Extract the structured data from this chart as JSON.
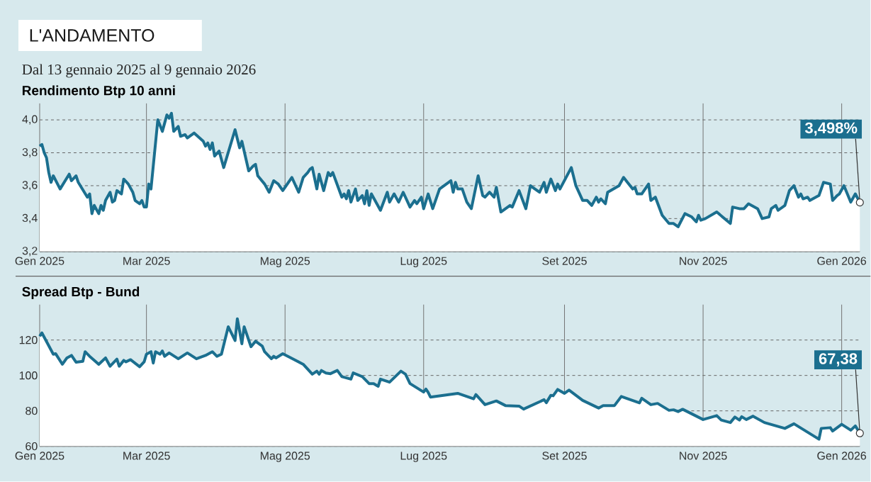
{
  "chart_data": [
    {
      "type": "area",
      "title": "L'ANDAMENTO",
      "subtitle": "Dal 13 gennaio 2025 al 9 gennaio 2026",
      "ylabel": "Rendimento Btp 10 anni",
      "color": "#1b6f8f",
      "grid": true,
      "xlim": [
        "2025-01-13",
        "2026-01-09"
      ],
      "ylim": [
        3.2,
        4.1
      ],
      "xticks": [
        {
          "value": "2025-01-13",
          "label": "Gen 2025"
        },
        {
          "value": "2025-03-01",
          "label": "Mar 2025"
        },
        {
          "value": "2025-05-01",
          "label": "Mag 2025"
        },
        {
          "value": "2025-07-01",
          "label": "Lug 2025"
        },
        {
          "value": "2025-09-01",
          "label": "Set 2025"
        },
        {
          "value": "2025-11-01",
          "label": "Nov 2025"
        },
        {
          "value": "2026-01-01",
          "label": "Gen 2026"
        }
      ],
      "yticks": [
        {
          "value": 3.2,
          "label": "3,2"
        },
        {
          "value": 3.4,
          "label": "3,4"
        },
        {
          "value": 3.6,
          "label": "3,6"
        },
        {
          "value": 3.8,
          "label": "3,8"
        },
        {
          "value": 4.0,
          "label": "4,0"
        }
      ],
      "x": [
        "2025-01-13",
        "2025-01-14",
        "2025-01-15",
        "2025-01-16",
        "2025-01-17",
        "2025-01-18",
        "2025-01-19",
        "2025-01-22",
        "2025-01-26",
        "2025-01-27",
        "2025-01-29",
        "2025-01-30",
        "2025-02-03",
        "2025-02-04",
        "2025-02-05",
        "2025-02-06",
        "2025-02-08",
        "2025-02-09",
        "2025-02-10",
        "2025-02-11",
        "2025-02-13",
        "2025-02-14",
        "2025-02-15",
        "2025-02-16",
        "2025-02-18",
        "2025-02-19",
        "2025-02-21",
        "2025-02-23",
        "2025-02-24",
        "2025-02-26",
        "2025-02-27",
        "2025-02-28",
        "2025-03-01",
        "2025-03-02",
        "2025-03-03",
        "2025-03-06",
        "2025-03-08",
        "2025-03-10",
        "2025-03-11",
        "2025-03-12",
        "2025-03-13",
        "2025-03-15",
        "2025-03-16",
        "2025-03-18",
        "2025-03-19",
        "2025-03-22",
        "2025-03-26",
        "2025-03-27",
        "2025-03-28",
        "2025-03-29",
        "2025-03-30",
        "2025-03-31",
        "2025-04-02",
        "2025-04-04",
        "2025-04-09",
        "2025-04-11",
        "2025-04-12",
        "2025-04-15",
        "2025-04-17",
        "2025-04-18",
        "2025-04-19",
        "2025-04-22",
        "2025-04-24",
        "2025-04-26",
        "2025-04-28",
        "2025-04-30",
        "2025-05-04",
        "2025-05-07",
        "2025-05-09",
        "2025-05-11",
        "2025-05-12",
        "2025-05-13",
        "2025-05-15",
        "2025-05-16",
        "2025-05-18",
        "2025-05-20",
        "2025-05-21",
        "2025-05-22",
        "2025-05-26",
        "2025-05-27",
        "2025-05-28",
        "2025-05-29",
        "2025-05-30",
        "2025-06-01",
        "2025-06-02",
        "2025-06-04",
        "2025-06-05",
        "2025-06-06",
        "2025-06-07",
        "2025-06-08",
        "2025-06-12",
        "2025-06-15",
        "2025-06-16",
        "2025-06-18",
        "2025-06-20",
        "2025-06-22",
        "2025-06-25",
        "2025-06-27",
        "2025-06-28",
        "2025-06-30",
        "2025-07-01",
        "2025-07-03",
        "2025-07-05",
        "2025-07-08",
        "2025-07-11",
        "2025-07-13",
        "2025-07-14",
        "2025-07-15",
        "2025-07-16",
        "2025-07-18",
        "2025-07-20",
        "2025-07-22",
        "2025-07-25",
        "2025-07-27",
        "2025-07-28",
        "2025-07-30",
        "2025-08-01",
        "2025-08-02",
        "2025-08-04",
        "2025-08-08",
        "2025-08-09",
        "2025-08-12",
        "2025-08-15",
        "2025-08-17",
        "2025-08-18",
        "2025-08-21",
        "2025-08-23",
        "2025-08-24",
        "2025-08-26",
        "2025-08-28",
        "2025-08-29",
        "2025-08-30",
        "2025-09-04",
        "2025-09-06",
        "2025-09-09",
        "2025-09-11",
        "2025-09-13",
        "2025-09-15",
        "2025-09-16",
        "2025-09-17",
        "2025-09-19",
        "2025-09-20",
        "2025-09-25",
        "2025-09-27",
        "2025-10-01",
        "2025-10-02",
        "2025-10-03",
        "2025-10-05",
        "2025-10-08",
        "2025-10-09",
        "2025-10-11",
        "2025-10-14",
        "2025-10-17",
        "2025-10-19",
        "2025-10-21",
        "2025-10-24",
        "2025-10-27",
        "2025-10-29",
        "2025-10-30",
        "2025-10-31",
        "2025-11-02",
        "2025-11-07",
        "2025-11-13",
        "2025-11-14",
        "2025-11-17",
        "2025-11-19",
        "2025-11-21",
        "2025-11-25",
        "2025-11-27",
        "2025-11-30",
        "2025-12-01",
        "2025-12-03",
        "2025-12-04",
        "2025-12-07",
        "2025-12-09",
        "2025-12-11",
        "2025-12-13",
        "2025-12-14",
        "2025-12-15",
        "2025-12-17",
        "2025-12-18",
        "2025-12-22",
        "2025-12-24",
        "2025-12-27",
        "2025-12-28",
        "2025-12-30",
        "2025-12-31",
        "2026-01-02",
        "2026-01-05",
        "2026-01-07",
        "2026-01-09"
      ],
      "values": [
        3.84,
        3.85,
        3.8,
        3.77,
        3.68,
        3.62,
        3.66,
        3.58,
        3.67,
        3.63,
        3.66,
        3.62,
        3.53,
        3.55,
        3.43,
        3.48,
        3.43,
        3.48,
        3.45,
        3.51,
        3.56,
        3.5,
        3.51,
        3.57,
        3.55,
        3.64,
        3.61,
        3.56,
        3.51,
        3.49,
        3.51,
        3.47,
        3.47,
        3.61,
        3.58,
        4.0,
        3.93,
        4.03,
        4.01,
        4.04,
        3.93,
        3.96,
        3.9,
        3.91,
        3.89,
        3.92,
        3.87,
        3.84,
        3.86,
        3.82,
        3.86,
        3.78,
        3.81,
        3.71,
        3.94,
        3.83,
        3.87,
        3.69,
        3.72,
        3.73,
        3.66,
        3.61,
        3.56,
        3.63,
        3.61,
        3.57,
        3.65,
        3.56,
        3.65,
        3.68,
        3.7,
        3.71,
        3.58,
        3.67,
        3.57,
        3.68,
        3.66,
        3.68,
        3.53,
        3.55,
        3.52,
        3.57,
        3.5,
        3.58,
        3.51,
        3.54,
        3.49,
        3.57,
        3.48,
        3.55,
        3.45,
        3.56,
        3.5,
        3.55,
        3.5,
        3.56,
        3.47,
        3.51,
        3.49,
        3.53,
        3.46,
        3.55,
        3.46,
        3.58,
        3.61,
        3.63,
        3.56,
        3.62,
        3.58,
        3.58,
        3.5,
        3.46,
        3.66,
        3.54,
        3.53,
        3.56,
        3.53,
        3.59,
        3.44,
        3.48,
        3.47,
        3.57,
        3.46,
        3.6,
        3.59,
        3.56,
        3.62,
        3.56,
        3.64,
        3.57,
        3.61,
        3.58,
        3.71,
        3.6,
        3.51,
        3.51,
        3.48,
        3.53,
        3.5,
        3.52,
        3.49,
        3.56,
        3.6,
        3.65,
        3.58,
        3.59,
        3.55,
        3.55,
        3.61,
        3.51,
        3.53,
        3.42,
        3.37,
        3.37,
        3.35,
        3.43,
        3.41,
        3.38,
        3.42,
        3.39,
        3.4,
        3.44,
        3.37,
        3.47,
        3.46,
        3.46,
        3.49,
        3.46,
        3.4,
        3.41,
        3.46,
        3.48,
        3.45,
        3.48,
        3.57,
        3.6,
        3.53,
        3.55,
        3.52,
        3.53,
        3.51,
        3.54,
        3.62,
        3.61,
        3.51,
        3.54,
        3.55,
        3.6,
        3.5,
        3.55,
        3.498
      ],
      "annotations": [
        {
          "text": "3,498%",
          "x": "2026-01-09",
          "y": 3.498
        }
      ]
    },
    {
      "type": "area",
      "ylabel": "Spread Btp - Bund",
      "color": "#1b6f8f",
      "grid": true,
      "xlim": [
        "2025-01-13",
        "2026-01-09"
      ],
      "ylim": [
        60,
        140
      ],
      "xticks": [
        {
          "value": "2025-01-13",
          "label": "Gen 2025"
        },
        {
          "value": "2025-03-01",
          "label": "Mar 2025"
        },
        {
          "value": "2025-05-01",
          "label": "Mag 2025"
        },
        {
          "value": "2025-07-01",
          "label": "Lug 2025"
        },
        {
          "value": "2025-09-01",
          "label": "Set 2025"
        },
        {
          "value": "2025-11-01",
          "label": "Nov 2025"
        },
        {
          "value": "2026-01-01",
          "label": "Gen 2026"
        }
      ],
      "yticks": [
        60,
        80,
        100,
        120
      ],
      "x": [
        "2025-01-13",
        "2025-01-14",
        "2025-01-19",
        "2025-01-20",
        "2025-01-23",
        "2025-01-25",
        "2025-01-27",
        "2025-01-29",
        "2025-02-01",
        "2025-02-02",
        "2025-02-04",
        "2025-02-08",
        "2025-02-11",
        "2025-02-13",
        "2025-02-16",
        "2025-02-17",
        "2025-02-19",
        "2025-02-20",
        "2025-02-22",
        "2025-02-26",
        "2025-02-28",
        "2025-03-01",
        "2025-03-03",
        "2025-03-04",
        "2025-03-05",
        "2025-03-07",
        "2025-03-08",
        "2025-03-09",
        "2025-03-11",
        "2025-03-15",
        "2025-03-19",
        "2025-03-23",
        "2025-03-27",
        "2025-03-30",
        "2025-04-01",
        "2025-04-03",
        "2025-04-06",
        "2025-04-09",
        "2025-04-10",
        "2025-04-12",
        "2025-04-13",
        "2025-04-16",
        "2025-04-18",
        "2025-04-21",
        "2025-04-22",
        "2025-04-25",
        "2025-04-26",
        "2025-04-27",
        "2025-04-30",
        "2025-05-09",
        "2025-05-13",
        "2025-05-15",
        "2025-05-16",
        "2025-05-17",
        "2025-05-19",
        "2025-05-21",
        "2025-05-24",
        "2025-05-26",
        "2025-05-30",
        "2025-05-31",
        "2025-06-04",
        "2025-06-07",
        "2025-06-09",
        "2025-06-11",
        "2025-06-12",
        "2025-06-16",
        "2025-06-21",
        "2025-06-23",
        "2025-06-25",
        "2025-07-01",
        "2025-07-02",
        "2025-07-03",
        "2025-07-04",
        "2025-07-16",
        "2025-07-23",
        "2025-07-24",
        "2025-07-28",
        "2025-08-02",
        "2025-08-06",
        "2025-08-12",
        "2025-08-14",
        "2025-08-23",
        "2025-08-24",
        "2025-08-26",
        "2025-08-27",
        "2025-08-29",
        "2025-09-01",
        "2025-09-03",
        "2025-09-09",
        "2025-09-16",
        "2025-09-18",
        "2025-09-23",
        "2025-09-26",
        "2025-10-04",
        "2025-10-05",
        "2025-10-09",
        "2025-10-12",
        "2025-10-17",
        "2025-10-19",
        "2025-10-21",
        "2025-10-23",
        "2025-11-01",
        "2025-11-07",
        "2025-11-09",
        "2025-11-13",
        "2025-11-15",
        "2025-11-17",
        "2025-11-18",
        "2025-11-20",
        "2025-11-23",
        "2025-11-28",
        "2025-12-07",
        "2025-12-11",
        "2025-12-22",
        "2025-12-23",
        "2025-12-27",
        "2025-12-28",
        "2026-01-01",
        "2026-01-05",
        "2026-01-07",
        "2026-01-09"
      ],
      "values": [
        122.1,
        124.0,
        112.0,
        112.3,
        106.3,
        109.9,
        111.3,
        107.5,
        108.0,
        113.4,
        110.8,
        106.3,
        109.9,
        105.2,
        109.2,
        105.2,
        108.5,
        107.7,
        108.9,
        104.9,
        107.7,
        112.0,
        113.4,
        107.0,
        113.4,
        112.0,
        113.8,
        110.8,
        112.7,
        109.4,
        112.7,
        109.4,
        111.3,
        113.4,
        110.8,
        112.0,
        127.5,
        119.7,
        132.0,
        117.9,
        127.5,
        116.2,
        119.3,
        116.5,
        113.4,
        109.4,
        110.8,
        109.9,
        112.3,
        106.3,
        100.7,
        102.4,
        100.7,
        102.8,
        101.4,
        101.0,
        102.8,
        99.3,
        97.9,
        101.4,
        99.3,
        95.4,
        95.4,
        93.9,
        97.9,
        96.2,
        102.4,
        100.7,
        95.4,
        90.6,
        92.3,
        90.4,
        87.8,
        89.9,
        86.8,
        89.2,
        83.5,
        85.6,
        83.0,
        82.7,
        81.0,
        86.3,
        84.6,
        88.8,
        88.5,
        92.1,
        89.9,
        91.7,
        85.9,
        81.6,
        83.0,
        83.0,
        88.1,
        84.5,
        87.1,
        83.5,
        84.2,
        80.3,
        80.6,
        79.6,
        80.9,
        75.1,
        77.3,
        74.8,
        73.4,
        76.5,
        74.8,
        76.7,
        75.1,
        77.0,
        73.4,
        70.1,
        72.7,
        64.0,
        70.1,
        70.5,
        68.6,
        72.4,
        69.1,
        71.5,
        67.38
      ],
      "annotations": [
        {
          "text": "67,38",
          "x": "2026-01-09",
          "y": 67.38
        }
      ]
    }
  ]
}
